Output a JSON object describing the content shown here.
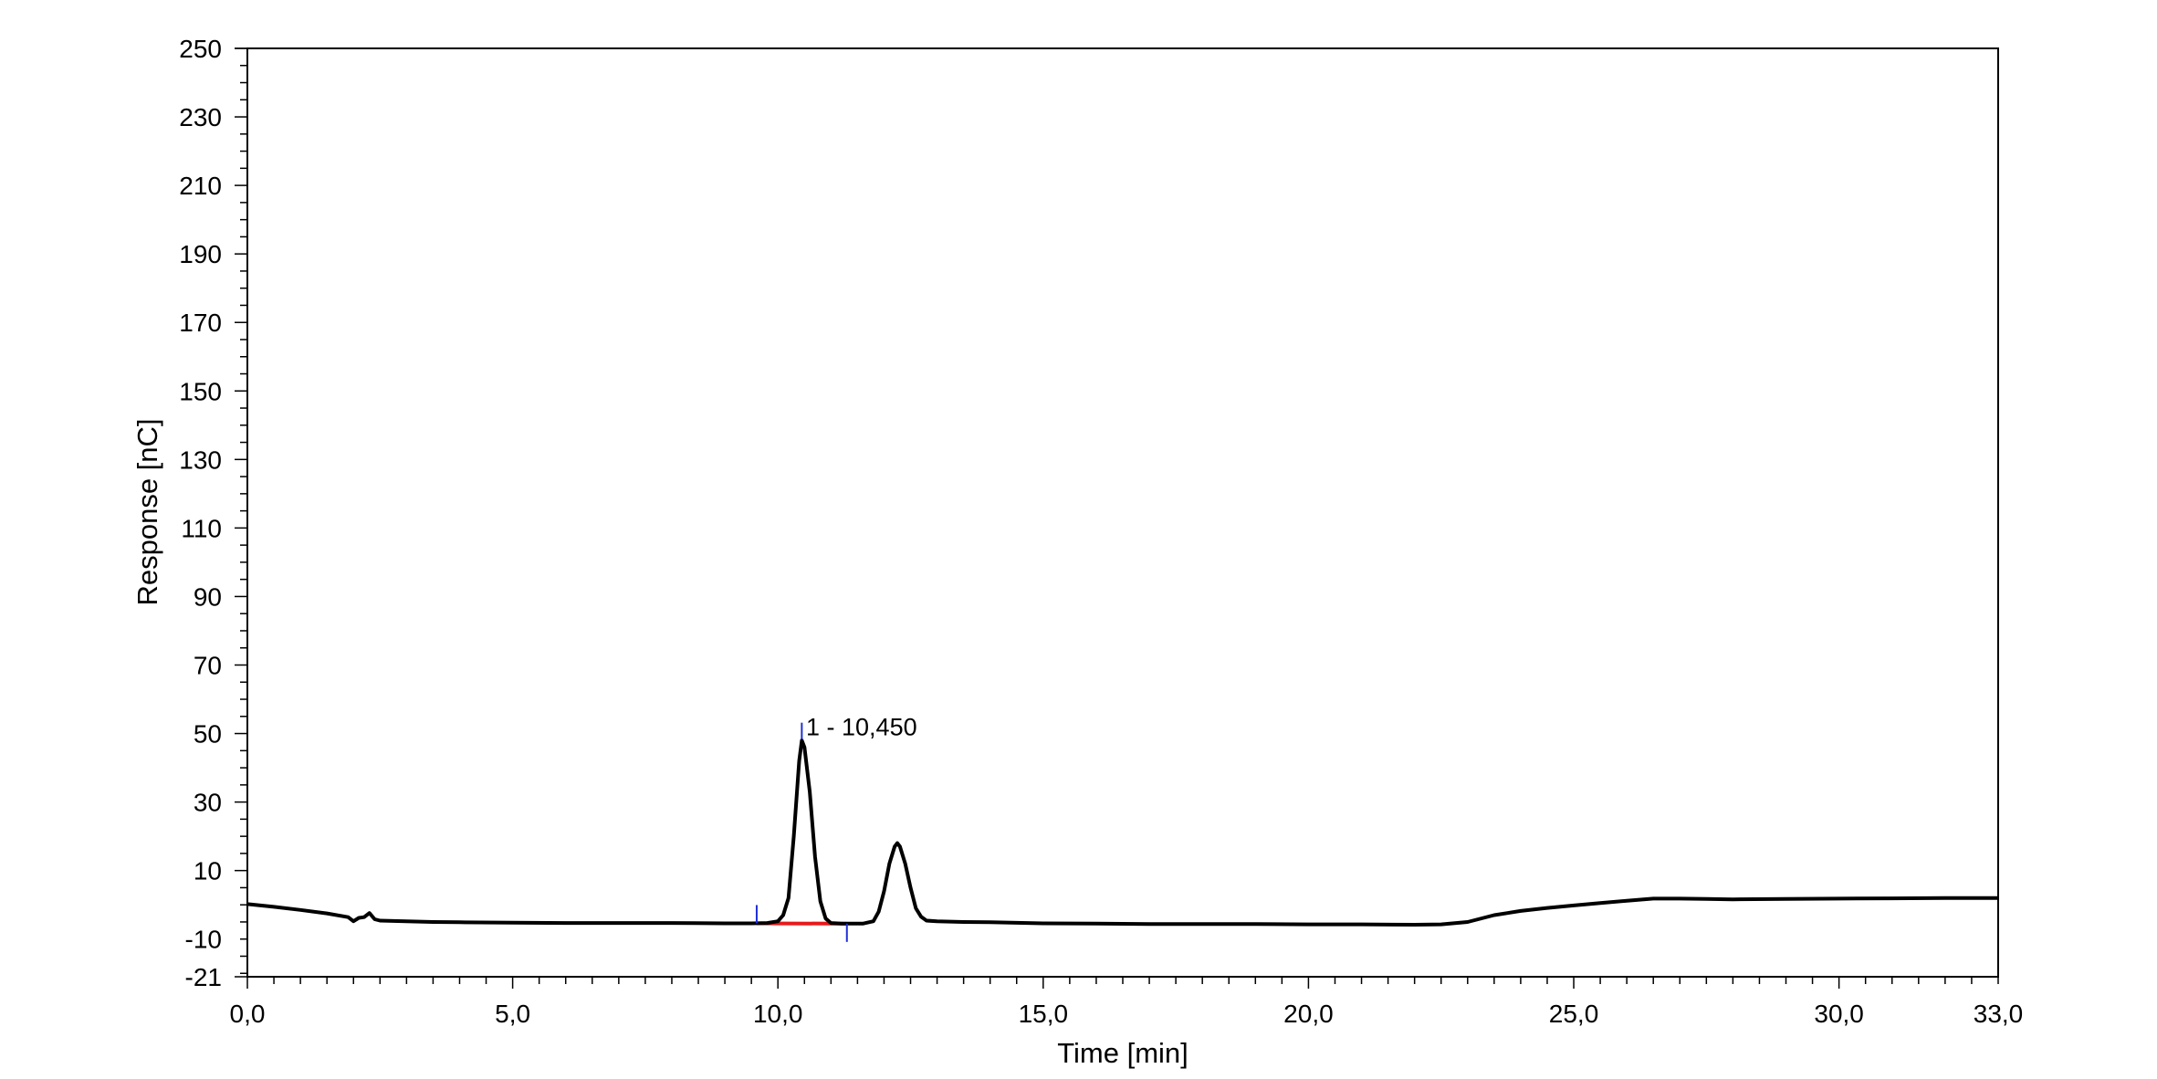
{
  "chart_data": {
    "type": "line",
    "xlabel": "Time [min]",
    "ylabel": "Response [nC]",
    "xlim": [
      0,
      33
    ],
    "ylim": [
      -21,
      250
    ],
    "grid": false,
    "x_ticks": [
      {
        "value": 0,
        "label": "0,0"
      },
      {
        "value": 5,
        "label": "5,0"
      },
      {
        "value": 10,
        "label": "10,0"
      },
      {
        "value": 15,
        "label": "15,0"
      },
      {
        "value": 20,
        "label": "20,0"
      },
      {
        "value": 25,
        "label": "25,0"
      },
      {
        "value": 30,
        "label": "30,0"
      },
      {
        "value": 33,
        "label": "33,0"
      }
    ],
    "y_ticks": [
      {
        "value": -21,
        "label": "-21"
      },
      {
        "value": -10,
        "label": "-10"
      },
      {
        "value": 10,
        "label": "10"
      },
      {
        "value": 30,
        "label": "30"
      },
      {
        "value": 50,
        "label": "50"
      },
      {
        "value": 70,
        "label": "70"
      },
      {
        "value": 90,
        "label": "90"
      },
      {
        "value": 110,
        "label": "110"
      },
      {
        "value": 130,
        "label": "130"
      },
      {
        "value": 150,
        "label": "150"
      },
      {
        "value": 170,
        "label": "170"
      },
      {
        "value": 190,
        "label": "190"
      },
      {
        "value": 210,
        "label": "210"
      },
      {
        "value": 230,
        "label": "230"
      },
      {
        "value": 250,
        "label": "250"
      }
    ],
    "colors": {
      "trace": "#000000",
      "integration_baseline": "#e8191a",
      "peak_markers": "#1f2fd6",
      "axes": "#000000"
    },
    "series": [
      {
        "x": [
          0,
          0.5,
          1.0,
          1.5,
          1.9,
          2.0,
          2.1,
          2.2,
          2.3,
          2.4,
          2.5,
          3.0,
          3.5,
          4.0,
          5.0,
          6.0,
          7.0,
          8.0,
          9.0,
          9.5,
          9.8,
          10.0,
          10.1,
          10.2,
          10.3,
          10.4,
          10.45,
          10.5,
          10.6,
          10.7,
          10.8,
          10.9,
          11.0,
          11.2,
          11.4,
          11.6,
          11.8,
          11.9,
          12.0,
          12.1,
          12.2,
          12.25,
          12.3,
          12.4,
          12.5,
          12.6,
          12.7,
          12.8,
          13.0,
          13.5,
          14.0,
          15.0,
          16.0,
          17.0,
          18.0,
          19.0,
          20.0,
          21.0,
          22.0,
          22.5,
          23.0,
          23.5,
          24.0,
          24.5,
          25.0,
          25.5,
          26.0,
          26.5,
          27.0,
          27.5,
          28.0,
          29.0,
          30.0,
          31.0,
          32.0,
          33.0
        ],
        "y": [
          0.2,
          -0.6,
          -1.5,
          -2.5,
          -3.6,
          -4.8,
          -3.8,
          -3.6,
          -2.4,
          -4.2,
          -4.6,
          -4.8,
          -5.0,
          -5.1,
          -5.2,
          -5.3,
          -5.3,
          -5.3,
          -5.4,
          -5.4,
          -5.3,
          -4.8,
          -3.0,
          2.0,
          20.0,
          42.0,
          48.0,
          46.0,
          33.0,
          14.0,
          1.0,
          -4.0,
          -5.3,
          -5.5,
          -5.5,
          -5.5,
          -4.8,
          -2.0,
          4.0,
          12.0,
          17.0,
          18.0,
          17.0,
          12.0,
          5.0,
          -1.0,
          -3.5,
          -4.6,
          -4.8,
          -5.0,
          -5.1,
          -5.4,
          -5.5,
          -5.6,
          -5.6,
          -5.6,
          -5.7,
          -5.7,
          -5.8,
          -5.7,
          -5.0,
          -3.0,
          -1.8,
          -0.9,
          -0.2,
          0.5,
          1.2,
          1.8,
          1.8,
          1.7,
          1.6,
          1.7,
          1.8,
          1.9,
          2.0,
          2.0
        ]
      }
    ],
    "integration_baseline": {
      "x": [
        9.6,
        11.3
      ],
      "y": [
        -5.4,
        -5.5
      ]
    },
    "peak_markers": [
      {
        "x": 9.6,
        "y": -5.4
      },
      {
        "x": 10.45,
        "y": 50.5
      },
      {
        "x": 11.3,
        "y": -5.5
      }
    ],
    "annotations": [
      {
        "text": "1 - 10,450",
        "x": 10.53,
        "y": 50.5
      }
    ]
  }
}
